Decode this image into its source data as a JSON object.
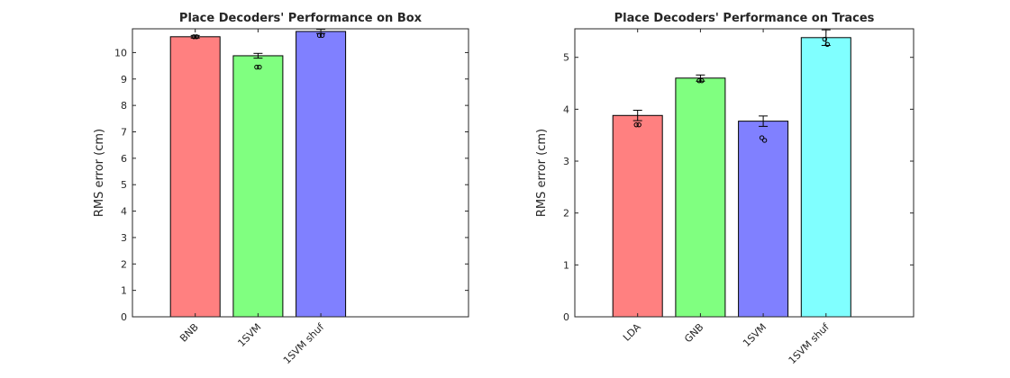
{
  "chart_data": [
    {
      "type": "bar",
      "title": "Place Decoders' Performance on Box",
      "ylabel": "RMS error (cm)",
      "xlabel": "",
      "categories": [
        "BNB",
        "1SVM",
        "1SVM shuf"
      ],
      "values": [
        10.6,
        9.88,
        10.8
      ],
      "error": [
        0.05,
        0.09,
        0.08
      ],
      "points": [
        [
          10.6,
          10.6
        ],
        [
          9.45,
          9.45
        ],
        [
          10.65,
          10.65
        ]
      ],
      "colors": [
        "#ff8080",
        "#80ff80",
        "#8080ff"
      ],
      "ylim": [
        0,
        10.9
      ],
      "yticks": [
        0,
        1,
        2,
        3,
        4,
        5,
        6,
        7,
        8,
        9,
        10
      ],
      "xlim": [
        0,
        5.35
      ],
      "positions": [
        1,
        2,
        3
      ],
      "grid": false
    },
    {
      "type": "bar",
      "title": "Place Decoders' Performance on Traces",
      "ylabel": "RMS error (cm)",
      "xlabel": "",
      "categories": [
        "LDA",
        "GNB",
        "1SVM",
        "1SVM shuf"
      ],
      "values": [
        3.88,
        4.6,
        3.77,
        5.38
      ],
      "error": [
        0.1,
        0.06,
        0.1,
        0.15
      ],
      "points": [
        [
          3.7,
          3.7
        ],
        [
          4.55,
          4.55
        ],
        [
          3.45,
          3.4
        ],
        [
          5.35,
          5.25
        ]
      ],
      "colors": [
        "#ff8080",
        "#80ff80",
        "#8080ff",
        "#80ffff"
      ],
      "ylim": [
        0,
        5.55
      ],
      "yticks": [
        0,
        1,
        2,
        3,
        4,
        5
      ],
      "xlim": [
        0,
        5.35
      ],
      "positions": [
        1,
        2,
        3,
        4
      ],
      "grid": false
    }
  ]
}
